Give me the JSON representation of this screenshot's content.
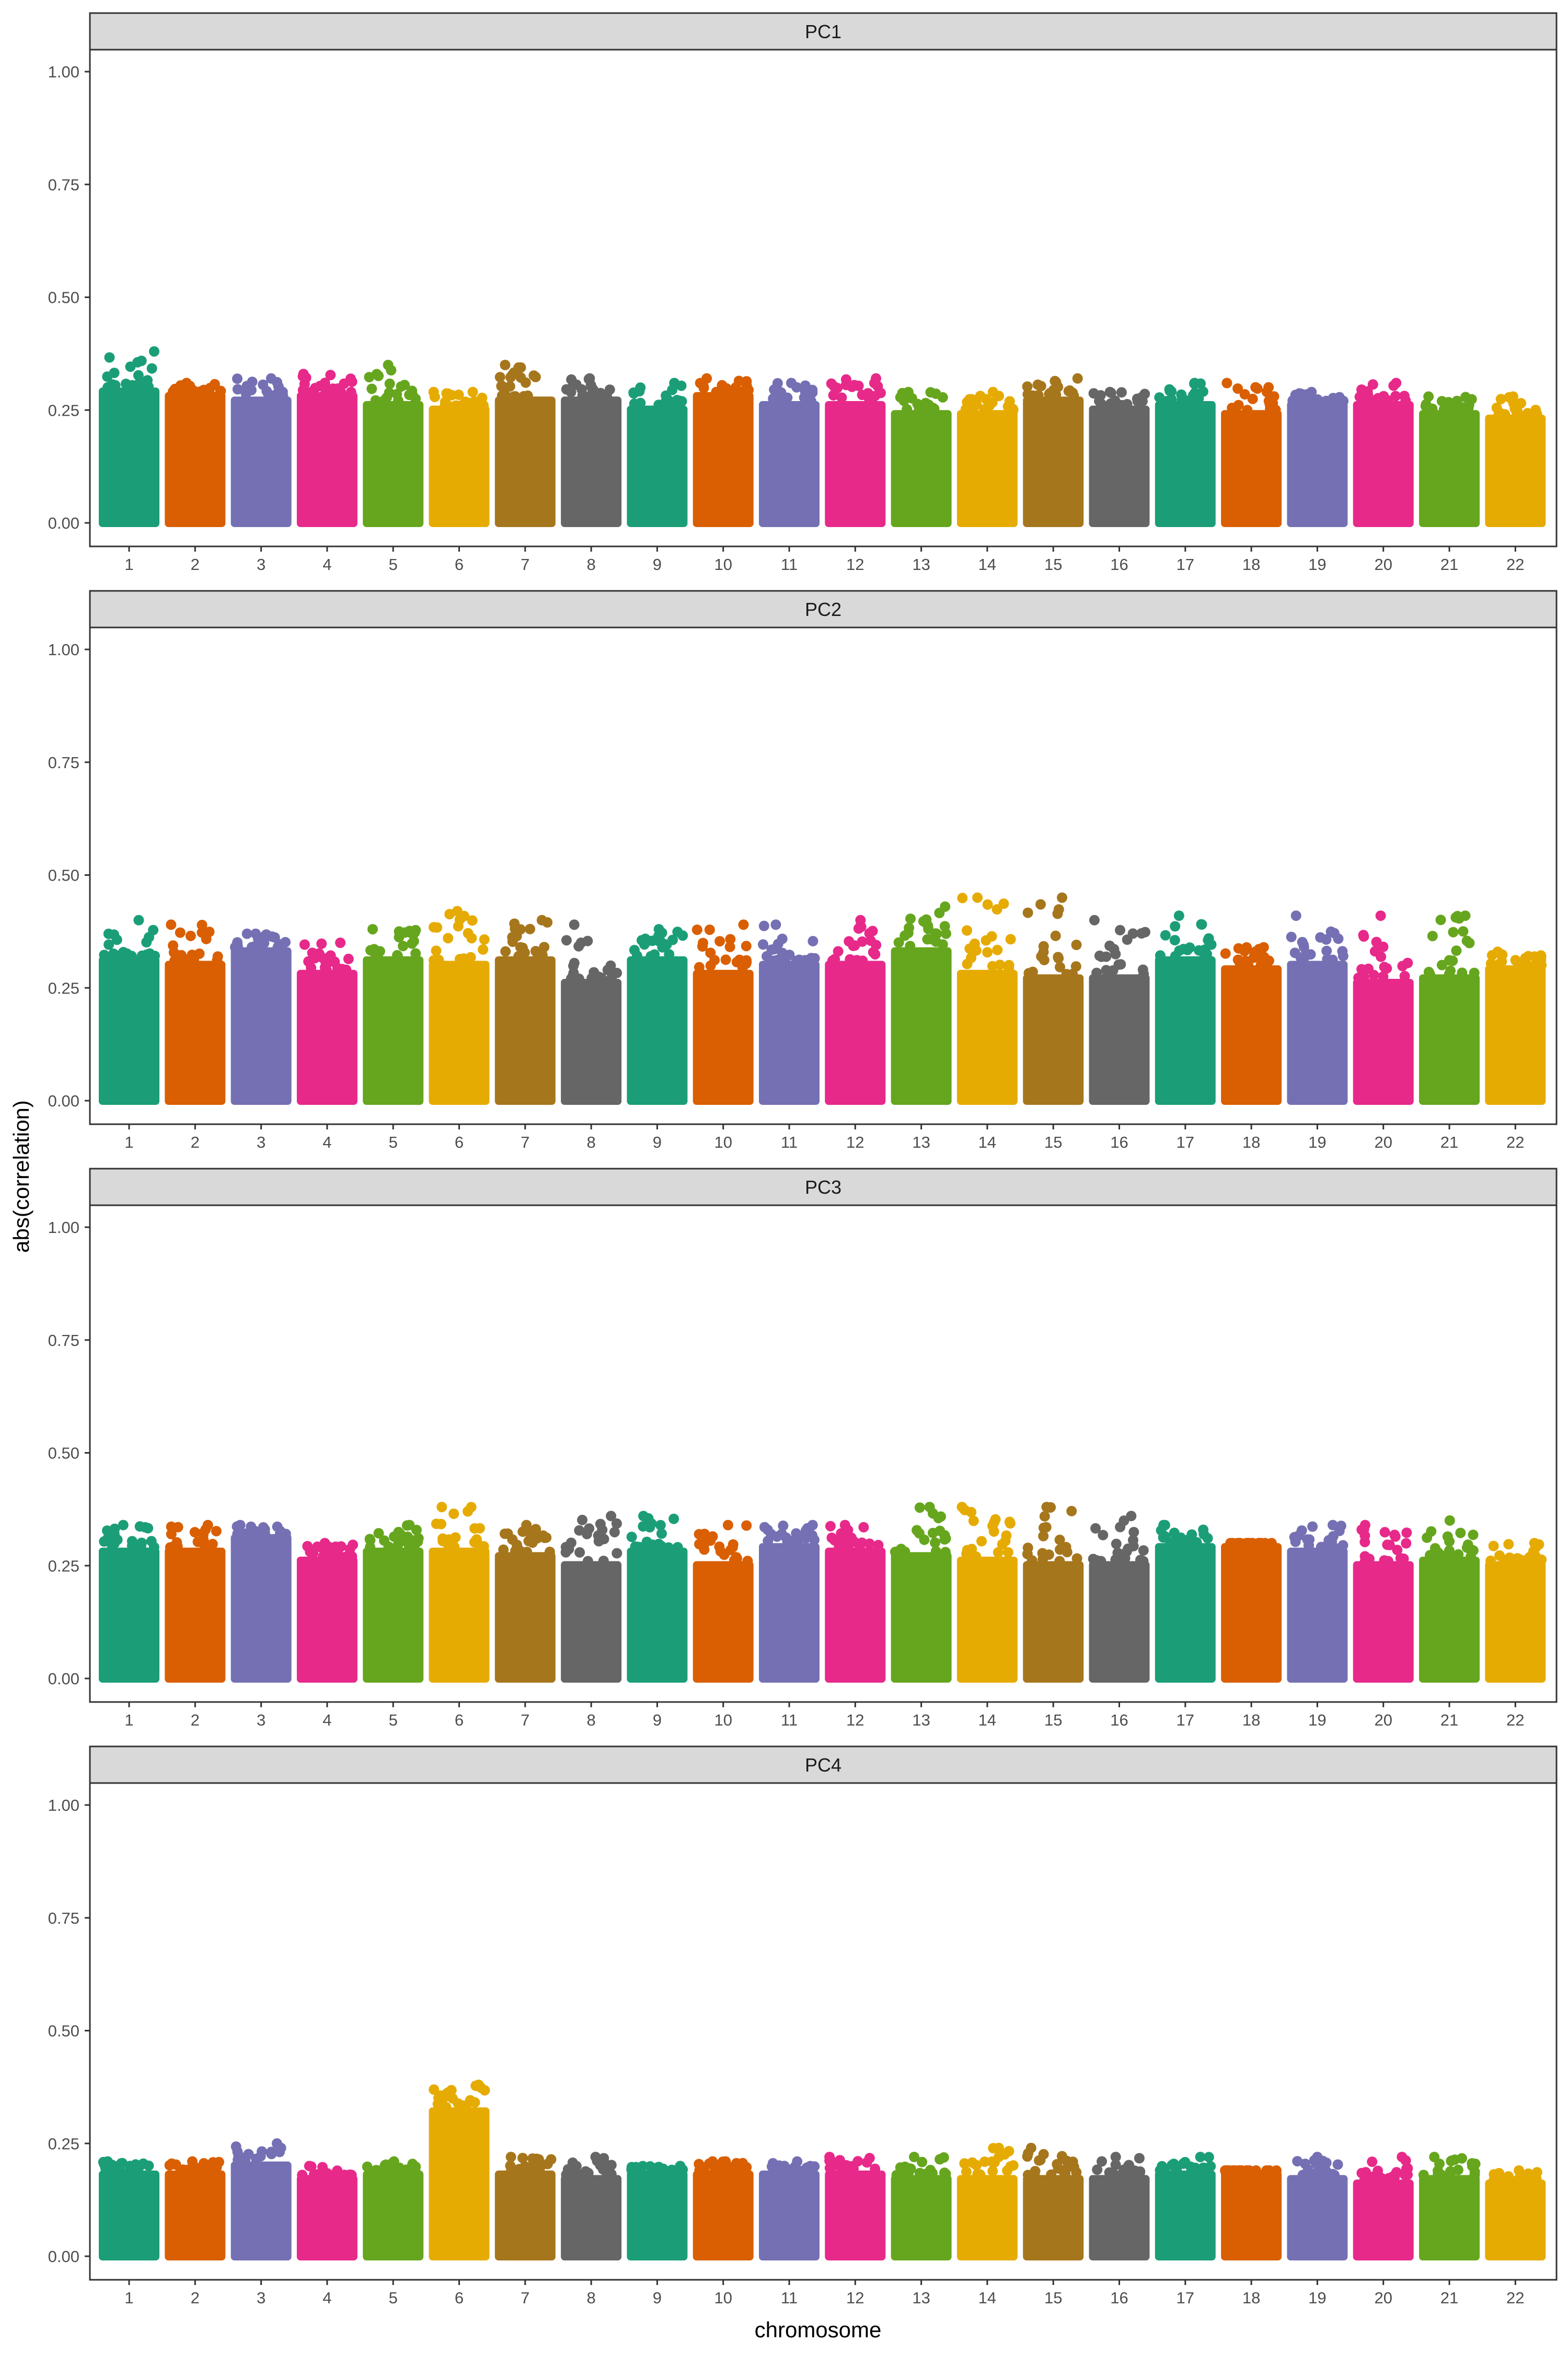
{
  "chart_data": {
    "type": "scatter",
    "subtype": "manhattan",
    "xlabel": "chromosome",
    "ylabel": "abs(correlation)",
    "ylim": [
      0,
      1
    ],
    "yticks": [
      "0.00",
      "0.25",
      "0.50",
      "0.75",
      "1.00"
    ],
    "categories": [
      "1",
      "2",
      "3",
      "4",
      "5",
      "6",
      "7",
      "8",
      "9",
      "10",
      "11",
      "12",
      "13",
      "14",
      "15",
      "16",
      "17",
      "18",
      "19",
      "20",
      "21",
      "22"
    ],
    "colors": [
      "#1B9E77",
      "#D95F02",
      "#7570B3",
      "#E7298A",
      "#66A61E",
      "#E6AB02",
      "#A6761D",
      "#666666"
    ],
    "panels": [
      {
        "label": "PC1",
        "max_values": [
          0.38,
          0.31,
          0.32,
          0.33,
          0.35,
          0.29,
          0.35,
          0.32,
          0.31,
          0.32,
          0.31,
          0.32,
          0.29,
          0.29,
          0.32,
          0.29,
          0.31,
          0.31,
          0.29,
          0.31,
          0.28,
          0.28
        ],
        "core_values": [
          0.3,
          0.29,
          0.28,
          0.29,
          0.27,
          0.26,
          0.28,
          0.28,
          0.26,
          0.29,
          0.27,
          0.27,
          0.25,
          0.25,
          0.28,
          0.26,
          0.27,
          0.25,
          0.27,
          0.27,
          0.25,
          0.24
        ]
      },
      {
        "label": "PC2",
        "max_values": [
          0.4,
          0.39,
          0.37,
          0.35,
          0.38,
          0.42,
          0.4,
          0.39,
          0.38,
          0.39,
          0.39,
          0.4,
          0.43,
          0.45,
          0.45,
          0.4,
          0.41,
          0.34,
          0.41,
          0.41,
          0.41,
          0.33
        ],
        "core_values": [
          0.32,
          0.31,
          0.34,
          0.29,
          0.32,
          0.31,
          0.32,
          0.27,
          0.32,
          0.29,
          0.31,
          0.31,
          0.34,
          0.29,
          0.28,
          0.28,
          0.32,
          0.3,
          0.31,
          0.27,
          0.28,
          0.3
        ]
      },
      {
        "label": "PC3",
        "max_values": [
          0.34,
          0.34,
          0.34,
          0.3,
          0.34,
          0.38,
          0.34,
          0.36,
          0.36,
          0.34,
          0.34,
          0.34,
          0.38,
          0.38,
          0.38,
          0.36,
          0.34,
          0.3,
          0.34,
          0.34,
          0.35,
          0.3
        ],
        "core_values": [
          0.29,
          0.29,
          0.32,
          0.27,
          0.29,
          0.29,
          0.28,
          0.26,
          0.29,
          0.26,
          0.3,
          0.29,
          0.28,
          0.27,
          0.26,
          0.26,
          0.3,
          0.3,
          0.29,
          0.26,
          0.27,
          0.26
        ]
      },
      {
        "label": "PC4",
        "max_values": [
          0.21,
          0.21,
          0.25,
          0.2,
          0.21,
          0.38,
          0.22,
          0.22,
          0.2,
          0.21,
          0.21,
          0.22,
          0.22,
          0.24,
          0.24,
          0.22,
          0.22,
          0.19,
          0.22,
          0.22,
          0.22,
          0.19
        ],
        "core_values": [
          0.19,
          0.19,
          0.21,
          0.18,
          0.19,
          0.33,
          0.19,
          0.18,
          0.19,
          0.19,
          0.19,
          0.19,
          0.18,
          0.18,
          0.18,
          0.18,
          0.19,
          0.19,
          0.18,
          0.17,
          0.18,
          0.17
        ]
      }
    ]
  }
}
